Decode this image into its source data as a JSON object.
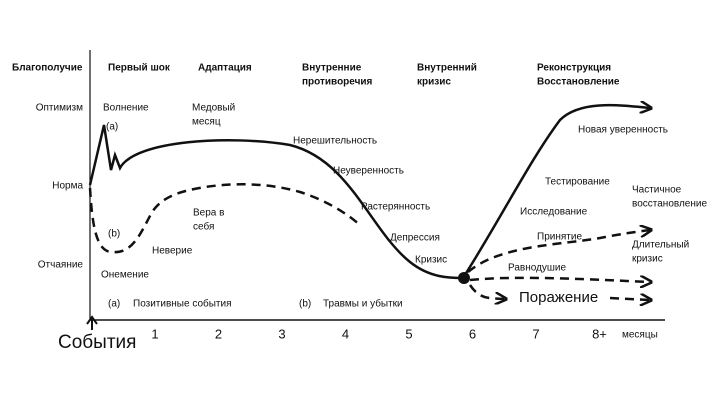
{
  "header": {
    "y_axis_title": "Благополучие",
    "phases": [
      [
        "Первый шок"
      ],
      [
        "Адаптация"
      ],
      [
        "Внутренние",
        "противоречия"
      ],
      [
        "Внутренний",
        "кризис"
      ],
      [
        "Реконструкция",
        "Восстановление"
      ]
    ]
  },
  "y_labels": [
    "Оптимизм",
    "Норма",
    "Отчаяние"
  ],
  "x_axis": {
    "start": "События",
    "ticks": [
      "1",
      "2",
      "3",
      "4",
      "5",
      "6",
      "7",
      "8+"
    ],
    "unit": "месяцы"
  },
  "curve_a_labels": [
    "Волнение",
    "(a)",
    [
      "Медовый",
      "месяц"
    ],
    "Нерешительность",
    "Неуверенность",
    "Растерянность",
    "Депрессия",
    "Кризис"
  ],
  "curve_b_labels": [
    "(b)",
    "Неверие",
    [
      "Вера в",
      "себя"
    ],
    "Онемение"
  ],
  "outcomes": {
    "new_confidence": "Новая уверенность",
    "testing": "Тестирование",
    "exploration": "Исследование",
    "acceptance": "Принятие",
    "indifference": "Равнодушие",
    "partial_recovery": [
      "Частичное",
      "восстановление"
    ],
    "long_crisis": [
      "Длительный",
      "кризис"
    ],
    "defeat": "Поражение"
  },
  "legend": [
    {
      "key": "(a)",
      "text": "Позитивные события"
    },
    {
      "key": "(b)",
      "text": "Травмы и убытки"
    }
  ]
}
